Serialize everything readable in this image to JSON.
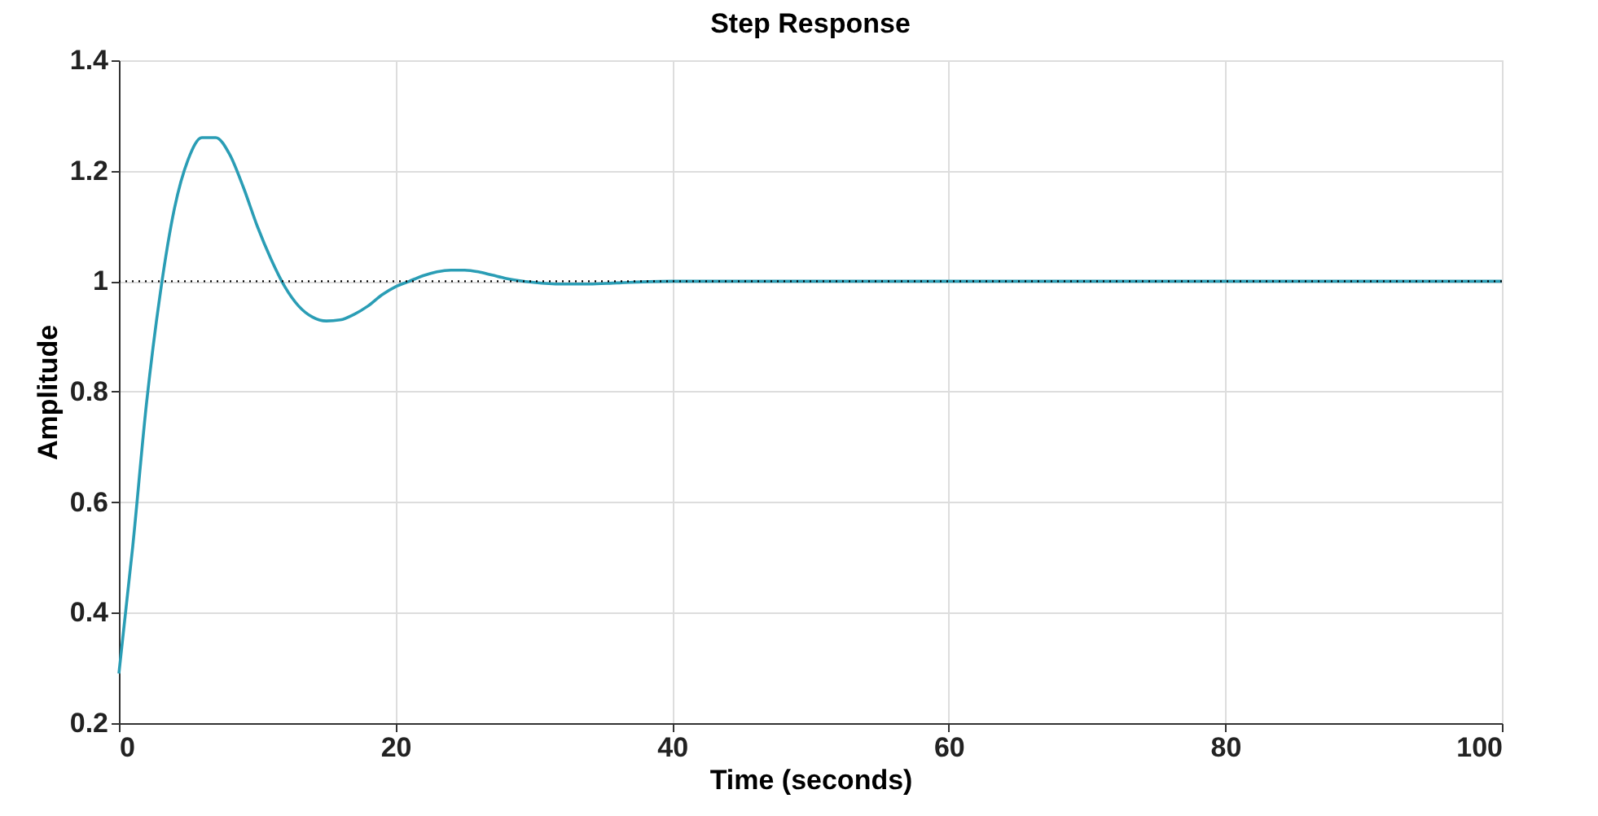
{
  "chart_data": {
    "type": "line",
    "title": "Step Response",
    "xlabel": "Time (seconds)",
    "ylabel": "Amplitude",
    "x": [
      0,
      1,
      2,
      3,
      4,
      5,
      6,
      7,
      8,
      9,
      10,
      11,
      12,
      13,
      14,
      15,
      16,
      17,
      18,
      19,
      20,
      21,
      22,
      23,
      24,
      25,
      26,
      27,
      28,
      30,
      32,
      34,
      36,
      40,
      50,
      100
    ],
    "series": [
      {
        "color": "#2a9db5",
        "values": [
          0.29,
          0.52,
          0.78,
          0.98,
          1.13,
          1.22,
          1.26,
          1.26,
          1.23,
          1.17,
          1.1,
          1.04,
          0.99,
          0.955,
          0.935,
          0.928,
          0.93,
          0.94,
          0.955,
          0.975,
          0.99,
          1.0,
          1.01,
          1.017,
          1.02,
          1.02,
          1.017,
          1.011,
          1.005,
          0.998,
          0.995,
          0.995,
          0.997,
          1.0,
          1.0,
          1.0
        ]
      }
    ],
    "xlim": [
      0,
      100
    ],
    "xticks": [
      0,
      20,
      40,
      60,
      80,
      100
    ],
    "ylim": [
      0.2,
      1.4
    ],
    "yticks": [
      0.2,
      0.4,
      0.6,
      0.8,
      1,
      1.2,
      1.4
    ],
    "ref_lines": [
      {
        "axis": "y",
        "value": 1,
        "color": "#000000",
        "line_style": "dotted"
      }
    ],
    "grid": true,
    "line_style": "solid",
    "marker": "none"
  }
}
